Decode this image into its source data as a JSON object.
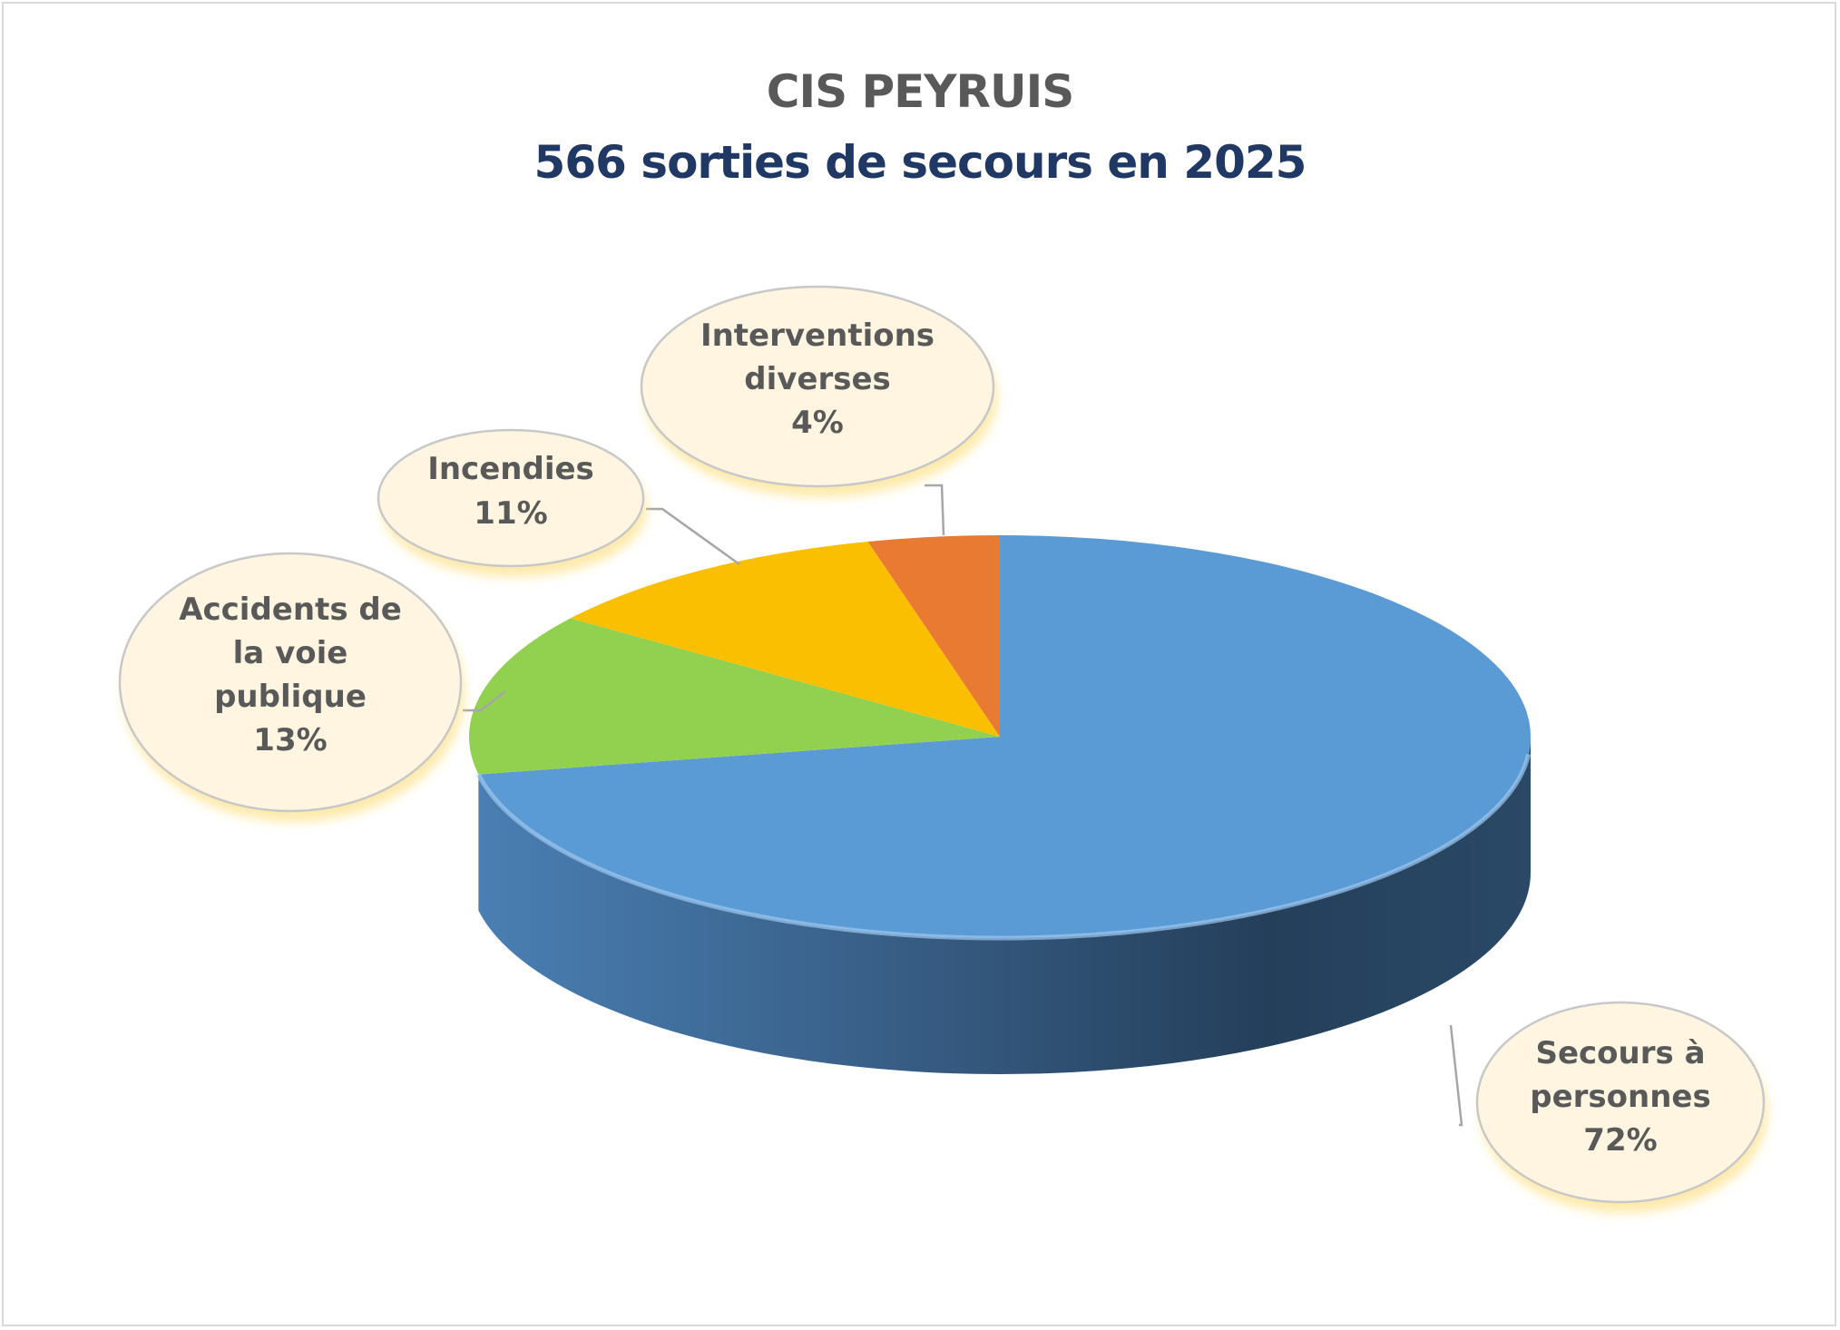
{
  "title": "CIS PEYRUIS",
  "subtitle": "566 sorties de secours en 2025",
  "chart_data": {
    "type": "pie",
    "style": "3d",
    "title": "CIS PEYRUIS",
    "subtitle": "566 sorties de secours en 2025",
    "total": 566,
    "categories": [
      "Secours à personnes",
      "Accidents de la voie publique",
      "Incendies",
      "Interventions diverses"
    ],
    "values": [
      72,
      13,
      11,
      4
    ],
    "unit": "%",
    "data_labels": [
      {
        "lines": [
          "Secours à",
          "personnes",
          "72%"
        ]
      },
      {
        "lines": [
          "Accidents de",
          "la voie",
          "publique",
          "13%"
        ]
      },
      {
        "lines": [
          "Incendies",
          "11%"
        ]
      },
      {
        "lines": [
          "Interventions",
          "diverses",
          "4%"
        ]
      }
    ],
    "colors": [
      "#5b9bd5",
      "#92d050",
      "#fac000",
      "#e97a31"
    ],
    "label_fill": "#fff5e1",
    "label_stroke": "#c8c8c8",
    "legend": "none"
  }
}
